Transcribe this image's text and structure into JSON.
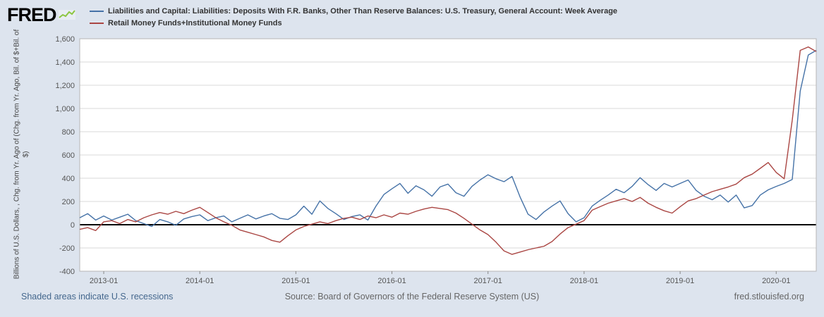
{
  "header": {
    "logo_text": "FRED",
    "legend": [
      {
        "label": "Liabilities and Capital: Liabilities: Deposits With F.R. Banks, Other Than Reserve Balances: U.S. Treasury, General Account: Week Average",
        "color": "#4572a7"
      },
      {
        "label": "Retail Money Funds+Institutional Money Funds",
        "color": "#aa4643"
      }
    ]
  },
  "footer": {
    "recessions_note": "Shaded areas indicate U.S. recessions",
    "source": "Source: Board of Governors of the Federal Reserve System (US)",
    "site": "fred.stlouisfed.org"
  },
  "colors": {
    "background": "#dde4ee",
    "plot_bg": "#ffffff",
    "plot_border": "#b6b6b6",
    "grid": "#d9d9d9",
    "zero_line": "#000000",
    "tick_text": "#555555",
    "link": "#44678d"
  },
  "chart_data": {
    "type": "line",
    "title": "",
    "xlabel": "",
    "ylabel": "Billions of U.S. Dollars, , Chg. from Yr. Ago of (Chg. from Yr. Ago, Bil. of $+Bil. of $)",
    "ylim": [
      -400,
      1600
    ],
    "grid": "horizontal",
    "legend_position": "top",
    "zero_line": true,
    "y_ticks": [
      "-400",
      "-200",
      "0",
      "200",
      "400",
      "600",
      "800",
      "1,000",
      "1,200",
      "1,400",
      "1,600"
    ],
    "x_ticks": [
      "2013-01",
      "2014-01",
      "2015-01",
      "2016-01",
      "2017-01",
      "2018-01",
      "2019-01",
      "2020-01"
    ],
    "x": [
      "2012-10",
      "2012-11",
      "2012-12",
      "2013-01",
      "2013-02",
      "2013-03",
      "2013-04",
      "2013-05",
      "2013-06",
      "2013-07",
      "2013-08",
      "2013-09",
      "2013-10",
      "2013-11",
      "2013-12",
      "2014-01",
      "2014-02",
      "2014-03",
      "2014-04",
      "2014-05",
      "2014-06",
      "2014-07",
      "2014-08",
      "2014-09",
      "2014-10",
      "2014-11",
      "2014-12",
      "2015-01",
      "2015-02",
      "2015-03",
      "2015-04",
      "2015-05",
      "2015-06",
      "2015-07",
      "2015-08",
      "2015-09",
      "2015-10",
      "2015-11",
      "2015-12",
      "2016-01",
      "2016-02",
      "2016-03",
      "2016-04",
      "2016-05",
      "2016-06",
      "2016-07",
      "2016-08",
      "2016-09",
      "2016-10",
      "2016-11",
      "2016-12",
      "2017-01",
      "2017-02",
      "2017-03",
      "2017-04",
      "2017-05",
      "2017-06",
      "2017-07",
      "2017-08",
      "2017-09",
      "2017-10",
      "2017-11",
      "2017-12",
      "2018-01",
      "2018-02",
      "2018-03",
      "2018-04",
      "2018-05",
      "2018-06",
      "2018-07",
      "2018-08",
      "2018-09",
      "2018-10",
      "2018-11",
      "2018-12",
      "2019-01",
      "2019-02",
      "2019-03",
      "2019-04",
      "2019-05",
      "2019-06",
      "2019-07",
      "2019-08",
      "2019-09",
      "2019-10",
      "2019-11",
      "2019-12",
      "2020-01",
      "2020-02",
      "2020-03",
      "2020-04",
      "2020-05",
      "2020-06"
    ],
    "series": [
      {
        "name": "Liabilities and Capital: Liabilities: Deposits With F.R. Banks, Other Than Reserve Balances: U.S. Treasury, General Account: Week Average",
        "color": "#4572a7",
        "values": [
          60,
          95,
          40,
          75,
          40,
          65,
          90,
          35,
          10,
          -15,
          45,
          25,
          -5,
          50,
          70,
          85,
          35,
          60,
          75,
          25,
          55,
          85,
          50,
          75,
          95,
          55,
          45,
          85,
          160,
          90,
          205,
          140,
          95,
          45,
          70,
          85,
          40,
          160,
          260,
          310,
          355,
          270,
          335,
          300,
          245,
          325,
          350,
          275,
          245,
          330,
          385,
          430,
          395,
          370,
          415,
          240,
          90,
          45,
          110,
          160,
          205,
          95,
          25,
          60,
          160,
          210,
          255,
          305,
          275,
          330,
          405,
          345,
          295,
          355,
          325,
          355,
          385,
          295,
          245,
          215,
          255,
          195,
          255,
          145,
          165,
          255,
          300,
          330,
          355,
          390,
          1150,
          1460,
          1500
        ]
      },
      {
        "name": "Retail Money Funds+Institutional Money Funds",
        "color": "#aa4643",
        "values": [
          -40,
          -25,
          -50,
          25,
          35,
          10,
          45,
          25,
          60,
          85,
          105,
          90,
          115,
          95,
          125,
          150,
          105,
          60,
          25,
          -5,
          -45,
          -65,
          -85,
          -105,
          -135,
          -150,
          -95,
          -45,
          -15,
          5,
          25,
          10,
          35,
          55,
          65,
          45,
          75,
          60,
          85,
          65,
          100,
          90,
          115,
          135,
          150,
          140,
          130,
          100,
          55,
          5,
          -45,
          -85,
          -150,
          -225,
          -255,
          -235,
          -215,
          -200,
          -185,
          -145,
          -80,
          -25,
          5,
          35,
          125,
          155,
          185,
          205,
          225,
          200,
          235,
          185,
          150,
          120,
          100,
          155,
          205,
          225,
          255,
          285,
          305,
          325,
          350,
          405,
          435,
          485,
          535,
          450,
          395,
          900,
          1500,
          1530,
          1490
        ]
      }
    ]
  }
}
